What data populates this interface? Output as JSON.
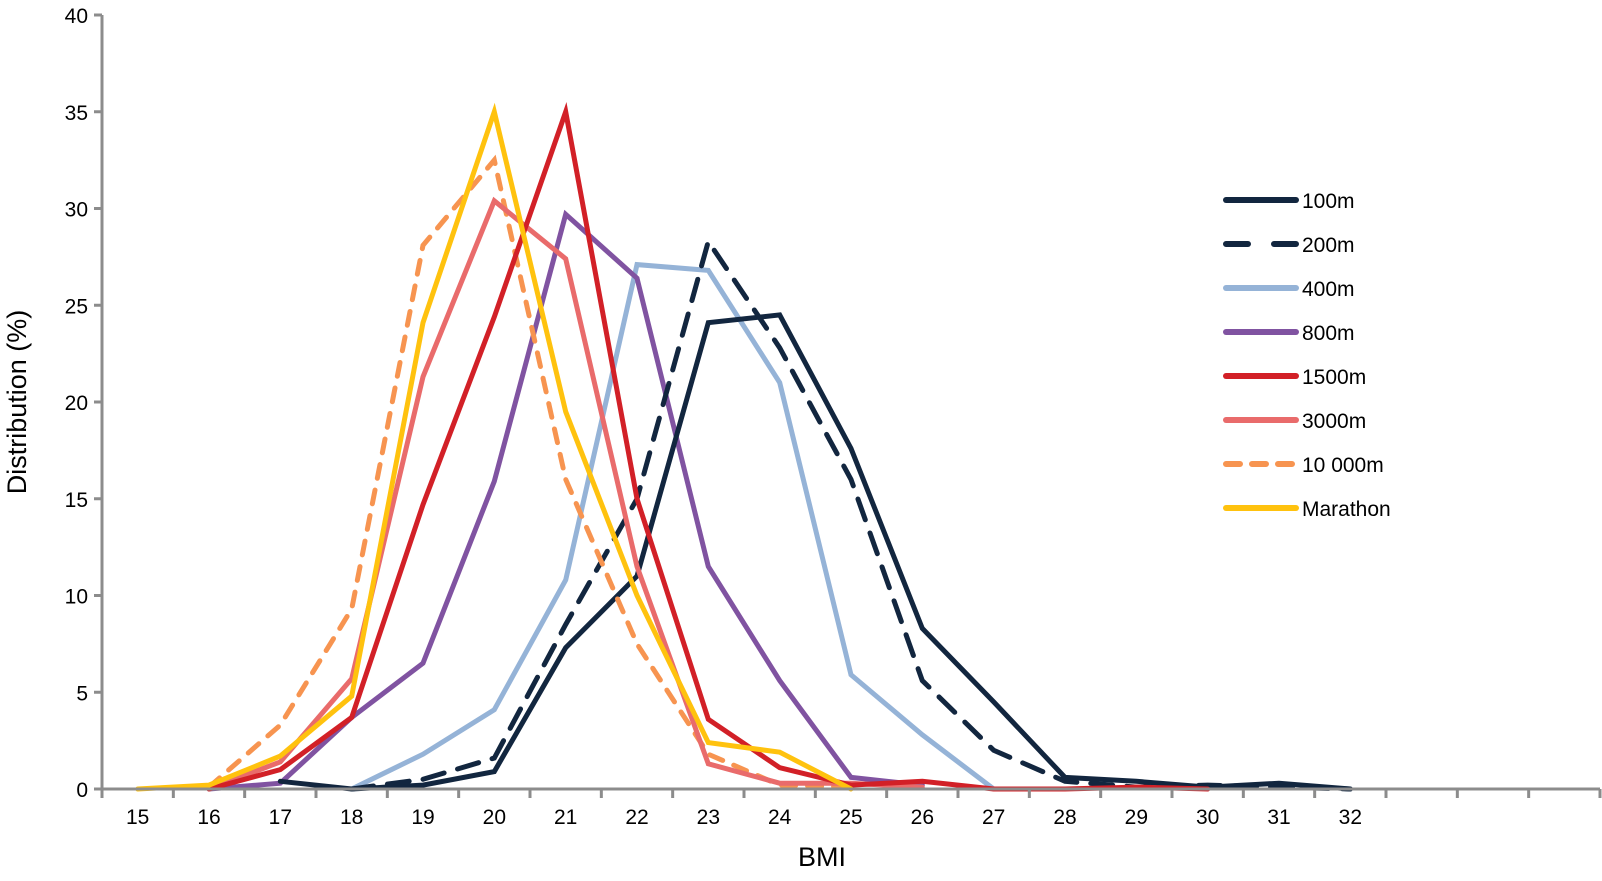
{
  "chart_data": {
    "type": "line",
    "title": "",
    "xlabel": "BMI",
    "ylabel": "Distribution (%)",
    "ylim": [
      0,
      40
    ],
    "yticks": [
      "0",
      "5",
      "10",
      "15",
      "20",
      "25",
      "30",
      "35",
      "40"
    ],
    "ytick_values": [
      0,
      5,
      10,
      15,
      20,
      25,
      30,
      35,
      40
    ],
    "categories": [
      "15",
      "16",
      "17",
      "18",
      "19",
      "20",
      "21",
      "22",
      "23",
      "24",
      "25",
      "26",
      "27",
      "28",
      "29",
      "30",
      "31",
      "32",
      "",
      "",
      ""
    ],
    "grid": false,
    "legend_position": "right",
    "series": [
      {
        "name": "100m",
        "color": "#12263f",
        "dash": "solid",
        "values": [
          null,
          null,
          0.4,
          0.0,
          0.2,
          0.9,
          7.3,
          11.0,
          24.1,
          24.5,
          17.6,
          8.3,
          4.5,
          0.6,
          0.4,
          0.1,
          0.3,
          0.0,
          null,
          null,
          null
        ]
      },
      {
        "name": "200m",
        "color": "#12263f",
        "dash": "dashed",
        "values": [
          null,
          null,
          null,
          0.0,
          0.5,
          1.6,
          8.5,
          15.0,
          28.3,
          22.8,
          16.0,
          5.6,
          2.0,
          0.4,
          0.1,
          0.2,
          0.1,
          0.0,
          null,
          null,
          null
        ]
      },
      {
        "name": "400m",
        "color": "#95b3d7",
        "dash": "solid",
        "values": [
          null,
          null,
          null,
          0.0,
          1.8,
          4.1,
          10.8,
          27.1,
          26.8,
          21.0,
          5.9,
          2.8,
          0.0,
          null,
          null,
          null,
          null,
          null,
          null,
          null,
          null
        ]
      },
      {
        "name": "800m",
        "color": "#8053a1",
        "dash": "solid",
        "values": [
          null,
          0.0,
          0.3,
          3.7,
          6.5,
          15.9,
          29.7,
          26.4,
          11.5,
          5.6,
          0.6,
          0.2,
          null,
          null,
          null,
          null,
          null,
          null,
          null,
          null,
          null
        ]
      },
      {
        "name": "1500m",
        "color": "#d22027",
        "dash": "solid",
        "values": [
          null,
          0.0,
          1.0,
          3.7,
          14.7,
          24.4,
          35.0,
          15.0,
          3.6,
          1.1,
          0.2,
          0.4,
          0.0,
          0.0,
          0.1,
          0.0,
          null,
          null,
          null,
          null,
          null
        ]
      },
      {
        "name": "3000m",
        "color": "#e96b6b",
        "dash": "solid",
        "values": [
          null,
          0.0,
          1.4,
          5.7,
          21.3,
          30.4,
          27.4,
          11.5,
          1.3,
          0.3,
          0.3,
          0.1,
          null,
          null,
          null,
          null,
          null,
          null,
          null,
          null,
          null
        ]
      },
      {
        "name": "10 000m",
        "color": "#f79450",
        "dash": "dashed",
        "values": [
          null,
          0.1,
          3.3,
          9.3,
          28.1,
          32.5,
          16.0,
          7.5,
          1.8,
          0.2,
          0.1,
          null,
          null,
          null,
          null,
          null,
          null,
          null,
          null,
          null,
          null
        ]
      },
      {
        "name": "Marathon",
        "color": "#ffc20e",
        "dash": "solid",
        "values": [
          0.0,
          0.2,
          1.7,
          4.8,
          24.1,
          35.0,
          19.5,
          10.0,
          2.4,
          1.9,
          0.0,
          null,
          null,
          null,
          null,
          null,
          null,
          null,
          null,
          null,
          null
        ]
      }
    ]
  }
}
